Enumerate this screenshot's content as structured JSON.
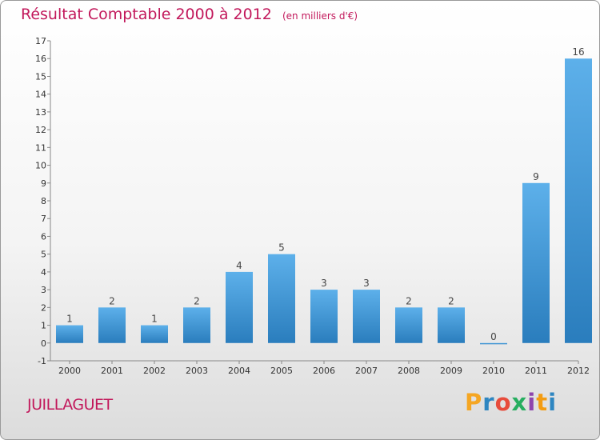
{
  "header": {
    "title": "Résultat Comptable 2000 à 2012",
    "subtitle": "(en milliers d'€)"
  },
  "footer": {
    "commune": "JUILLAGUET",
    "brand_letters": [
      "P",
      "r",
      "o",
      "x",
      "i",
      "t",
      "i"
    ],
    "brand_colors": [
      "#f5a623",
      "#2e86c1",
      "#e74c3c",
      "#27ae60",
      "#8e44ad",
      "#f39c12",
      "#2e86c1"
    ]
  },
  "colors": {
    "bar_top": "#5db0ea",
    "bar_bottom": "#2a7dbd",
    "title": "#c2185b"
  },
  "chart_data": {
    "type": "bar",
    "title": "Résultat Comptable 2000 à 2012",
    "subtitle": "(en milliers d'€)",
    "xlabel": "",
    "ylabel": "",
    "categories": [
      "2000",
      "2001",
      "2002",
      "2003",
      "2004",
      "2005",
      "2006",
      "2007",
      "2008",
      "2009",
      "2010",
      "2011",
      "2012"
    ],
    "values": [
      1,
      2,
      1,
      2,
      4,
      5,
      3,
      3,
      2,
      2,
      0,
      9,
      16
    ],
    "ylim": [
      -1,
      17
    ],
    "yticks": [
      -1,
      0,
      1,
      2,
      3,
      4,
      5,
      6,
      7,
      8,
      9,
      10,
      11,
      12,
      13,
      14,
      15,
      16,
      17
    ],
    "grid": false
  }
}
